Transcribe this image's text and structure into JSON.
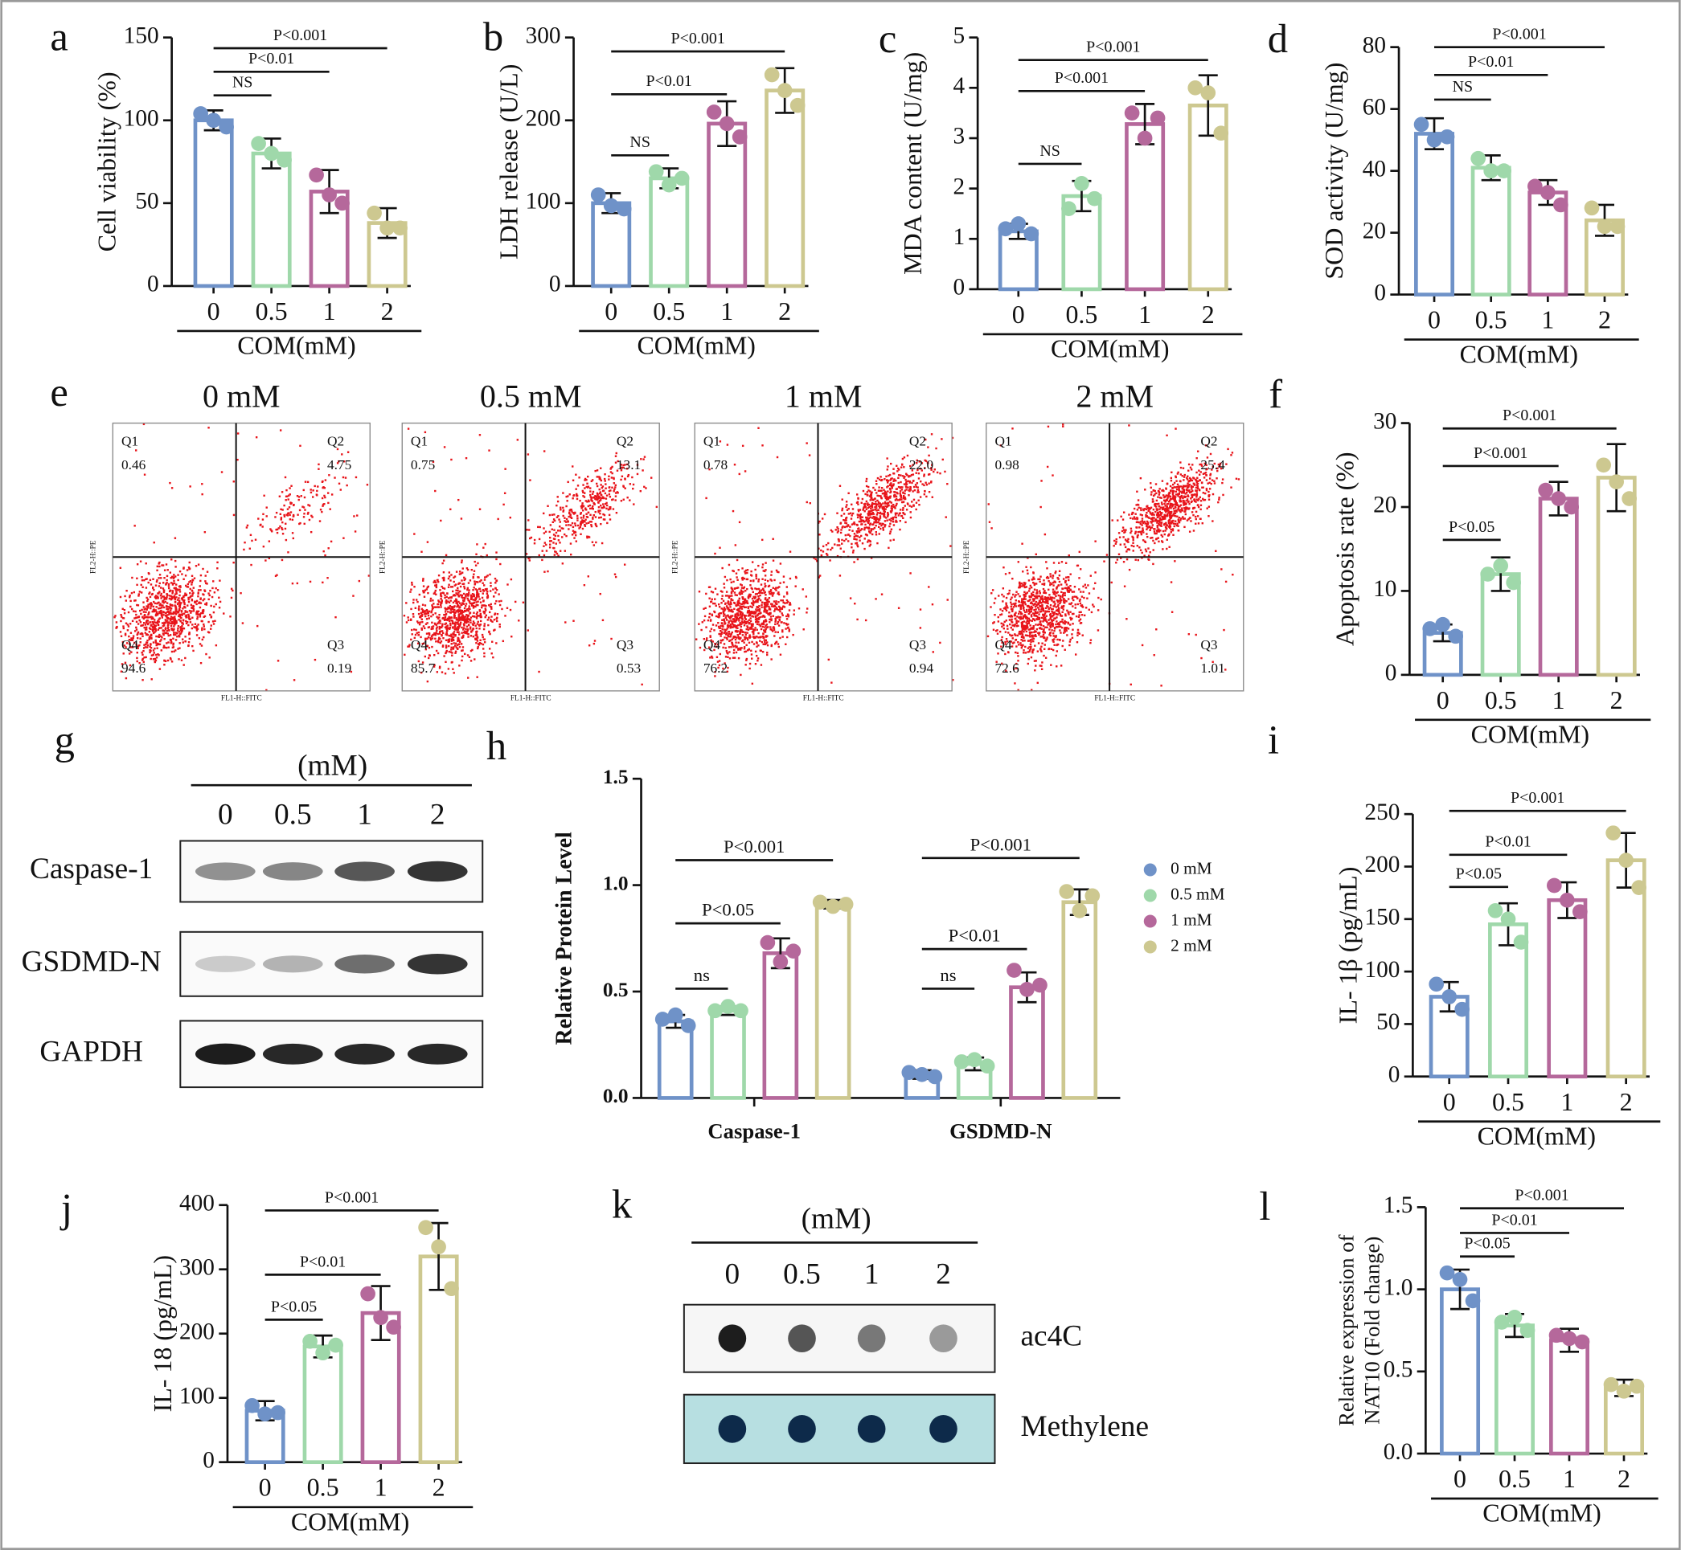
{
  "chart_data": [
    {
      "type": "bar",
      "label": "a",
      "y_label": "Cell viability (%)",
      "x_label": "COM(mM)",
      "categories": [
        "0",
        "0.5",
        "1",
        "2"
      ],
      "values": [
        100,
        80,
        57,
        38
      ],
      "errors": [
        6,
        9,
        13,
        9
      ],
      "points": [
        [
          104,
          100,
          96
        ],
        [
          86,
          80,
          76
        ],
        [
          67,
          55,
          50
        ],
        [
          44,
          35,
          35
        ]
      ],
      "colors": [
        "#6f92c8",
        "#9fd8aa",
        "#b5689b",
        "#cdc890"
      ],
      "ylim": [
        0,
        150
      ],
      "yticks": [
        0,
        50,
        100,
        150
      ],
      "comparisons": [
        "NS",
        "P<0.01",
        "P<0.001"
      ]
    },
    {
      "type": "bar",
      "label": "b",
      "y_label": "LDH release (U/L)",
      "x_label": "COM(mM)",
      "categories": [
        "0",
        "0.5",
        "1",
        "2"
      ],
      "values": [
        100,
        130,
        196,
        236
      ],
      "errors": [
        12,
        12,
        27,
        27
      ],
      "points": [
        [
          110,
          97,
          93
        ],
        [
          138,
          122,
          130
        ],
        [
          210,
          196,
          180
        ],
        [
          255,
          236,
          218
        ]
      ],
      "colors": [
        "#6f92c8",
        "#9fd8aa",
        "#b5689b",
        "#cdc890"
      ],
      "ylim": [
        0,
        300
      ],
      "yticks": [
        0,
        100,
        200,
        300
      ],
      "comparisons": [
        "NS",
        "P<0.01",
        "P<0.001"
      ]
    },
    {
      "type": "bar",
      "label": "c",
      "y_label": "MDA content (U/mg)",
      "x_label": "COM(mM)",
      "categories": [
        "0",
        "0.5",
        "1",
        "2"
      ],
      "values": [
        1.15,
        1.85,
        3.28,
        3.65
      ],
      "errors": [
        0.15,
        0.3,
        0.4,
        0.6
      ],
      "points": [
        [
          1.2,
          1.3,
          1.1
        ],
        [
          1.6,
          2.1,
          1.8
        ],
        [
          3.5,
          3.0,
          3.4
        ],
        [
          4.0,
          3.9,
          3.1
        ]
      ],
      "colors": [
        "#6f92c8",
        "#9fd8aa",
        "#b5689b",
        "#cdc890"
      ],
      "ylim": [
        0,
        5
      ],
      "yticks": [
        0,
        1,
        2,
        3,
        4,
        5
      ],
      "comparisons": [
        "NS",
        "P<0.001",
        "P<0.001"
      ]
    },
    {
      "type": "bar",
      "label": "d",
      "y_label": "SOD activity (U/mg)",
      "x_label": "COM(mM)",
      "categories": [
        "0",
        "0.5",
        "1",
        "2"
      ],
      "values": [
        52,
        41,
        33,
        24
      ],
      "errors": [
        5,
        4,
        4,
        5
      ],
      "points": [
        [
          55,
          50,
          51
        ],
        [
          44,
          40,
          40
        ],
        [
          35,
          33,
          29
        ],
        [
          28,
          22,
          22
        ]
      ],
      "colors": [
        "#6f92c8",
        "#9fd8aa",
        "#b5689b",
        "#cdc890"
      ],
      "ylim": [
        0,
        80
      ],
      "yticks": [
        0,
        20,
        40,
        60,
        80
      ],
      "comparisons": [
        "NS",
        "P<0.01",
        "P<0.001"
      ]
    },
    {
      "type": "bar",
      "label": "f",
      "y_label": "Apoptosis rate (%)",
      "x_label": "COM(mM)",
      "categories": [
        "0",
        "0.5",
        "1",
        "2"
      ],
      "values": [
        5,
        12,
        21,
        23.5
      ],
      "errors": [
        1,
        2,
        2,
        4
      ],
      "points": [
        [
          5.5,
          6,
          4.6
        ],
        [
          12,
          13,
          11
        ],
        [
          22,
          21,
          20
        ],
        [
          25,
          23,
          21
        ]
      ],
      "colors": [
        "#6f92c8",
        "#9fd8aa",
        "#b5689b",
        "#cdc890"
      ],
      "ylim": [
        0,
        30
      ],
      "yticks": [
        0,
        10,
        20,
        30
      ],
      "comparisons": [
        "P<0.05",
        "P<0.001",
        "P<0.001"
      ]
    },
    {
      "type": "grouped_bar",
      "label": "h",
      "y_label": "Relative Protein Level",
      "categories": [
        "Caspase-1",
        "GSDMD-N"
      ],
      "series": [
        {
          "name": "0 mM",
          "color": "#6f92c8",
          "values": [
            0.36,
            0.11
          ],
          "errors": [
            0.03,
            0.02
          ],
          "points": [
            [
              0.37,
              0.39,
              0.34
            ],
            [
              0.12,
              0.11,
              0.1
            ]
          ]
        },
        {
          "name": "0.5 mM",
          "color": "#9fd8aa",
          "values": [
            0.41,
            0.16
          ],
          "errors": [
            0.02,
            0.03
          ],
          "points": [
            [
              0.41,
              0.43,
              0.41
            ],
            [
              0.17,
              0.18,
              0.15
            ]
          ]
        },
        {
          "name": "1 mM",
          "color": "#b5689b",
          "values": [
            0.68,
            0.52
          ],
          "errors": [
            0.07,
            0.07
          ],
          "points": [
            [
              0.73,
              0.64,
              0.69
            ],
            [
              0.6,
              0.51,
              0.53
            ]
          ]
        },
        {
          "name": "2 mM",
          "color": "#cdc890",
          "values": [
            0.91,
            0.92
          ],
          "errors": [
            0.02,
            0.06
          ],
          "points": [
            [
              0.92,
              0.9,
              0.91
            ],
            [
              0.97,
              0.88,
              0.95
            ]
          ]
        }
      ],
      "comparisons": [
        [
          "ns",
          "P<0.05",
          "P<0.001"
        ],
        [
          "ns",
          "P<0.01",
          "P<0.001"
        ]
      ],
      "ylim": [
        0,
        1.5
      ],
      "yticks": [
        {
          "value": 0,
          "label": "0.0"
        },
        0.5,
        {
          "value": 1,
          "label": "1.0"
        },
        1.5
      ]
    },
    {
      "type": "bar",
      "label": "i",
      "y_label": "IL- 1β (pg/mL)",
      "x_label": "COM(mM)",
      "categories": [
        "0",
        "0.5",
        "1",
        "2"
      ],
      "values": [
        76,
        145,
        168,
        206
      ],
      "errors": [
        14,
        20,
        17,
        26
      ],
      "points": [
        [
          88,
          76,
          64
        ],
        [
          158,
          150,
          128
        ],
        [
          182,
          168,
          157
        ],
        [
          232,
          206,
          180
        ]
      ],
      "colors": [
        "#6f92c8",
        "#9fd8aa",
        "#b5689b",
        "#cdc890"
      ],
      "ylim": [
        0,
        250
      ],
      "yticks": [
        0,
        50,
        100,
        150,
        200,
        250
      ],
      "comparisons": [
        "P<0.05",
        "P<0.01",
        "P<0.001"
      ]
    },
    {
      "type": "bar",
      "label": "j",
      "y_label": "IL- 18 (pg/mL)",
      "x_label": "COM(mM)",
      "categories": [
        "0",
        "0.5",
        "1",
        "2"
      ],
      "values": [
        80,
        180,
        232,
        320
      ],
      "errors": [
        15,
        17,
        42,
        52
      ],
      "points": [
        [
          88,
          75,
          77
        ],
        [
          188,
          170,
          182
        ],
        [
          262,
          225,
          210
        ],
        [
          365,
          335,
          270
        ]
      ],
      "colors": [
        "#6f92c8",
        "#9fd8aa",
        "#b5689b",
        "#cdc890"
      ],
      "ylim": [
        0,
        400
      ],
      "yticks": [
        0,
        100,
        200,
        300,
        400
      ],
      "comparisons": [
        "P<0.05",
        "P<0.01",
        "P<0.001"
      ]
    },
    {
      "type": "bar",
      "label": "l",
      "y_label": [
        "Relative expression of",
        "NAT10 (Fold change)"
      ],
      "x_label": "COM(mM)",
      "categories": [
        "0",
        "0.5",
        "1",
        "2"
      ],
      "values": [
        1.0,
        0.78,
        0.69,
        0.4
      ],
      "errors": [
        0.12,
        0.07,
        0.07,
        0.05
      ],
      "points": [
        [
          1.1,
          1.06,
          0.93
        ],
        [
          0.8,
          0.83,
          0.75
        ],
        [
          0.72,
          0.7,
          0.68
        ],
        [
          0.42,
          0.38,
          0.41
        ]
      ],
      "colors": [
        "#6f92c8",
        "#9fd8aa",
        "#b5689b",
        "#cdc890"
      ],
      "ylim": [
        0,
        1.5
      ],
      "yticks": [
        {
          "value": 0,
          "label": "0.0"
        },
        0.5,
        {
          "value": 1,
          "label": "1.0"
        },
        1.5
      ],
      "comparisons": [
        "P<0.05",
        "P<0.01",
        "P<0.001"
      ]
    }
  ],
  "flow_cytometry": {
    "label": "e",
    "x_axis": "FL1-H::FITC",
    "y_axis": "FL2-H::PE",
    "panels": [
      {
        "title": "0 mM",
        "quadrants": [
          {
            "name": "Q1",
            "value": "0.46"
          },
          {
            "name": "Q2",
            "value": "4.75"
          },
          {
            "name": "Q3",
            "value": "0.19"
          },
          {
            "name": "Q4",
            "value": "94.6"
          }
        ]
      },
      {
        "title": "0.5 mM",
        "quadrants": [
          {
            "name": "Q1",
            "value": "0.75"
          },
          {
            "name": "Q2",
            "value": "13.1"
          },
          {
            "name": "Q3",
            "value": "0.53"
          },
          {
            "name": "Q4",
            "value": "85.7"
          }
        ]
      },
      {
        "title": "1 mM",
        "quadrants": [
          {
            "name": "Q1",
            "value": "0.78"
          },
          {
            "name": "Q2",
            "value": "22.0"
          },
          {
            "name": "Q3",
            "value": "0.94"
          },
          {
            "name": "Q4",
            "value": "76.2"
          }
        ]
      },
      {
        "title": "2 mM",
        "quadrants": [
          {
            "name": "Q1",
            "value": "0.98"
          },
          {
            "name": "Q2",
            "value": "25.4"
          },
          {
            "name": "Q3",
            "value": "1.01"
          },
          {
            "name": "Q4",
            "value": "72.6"
          }
        ]
      }
    ]
  },
  "blots": [
    {
      "label": "g",
      "unit": "(mM)",
      "lanes": [
        "0",
        "0.5",
        "1",
        "2"
      ],
      "rows": [
        "Caspase-1",
        "GSDMD-N",
        "GAPDH"
      ]
    },
    {
      "label": "k",
      "unit": "(mM)",
      "lanes": [
        "0",
        "0.5",
        "1",
        "2"
      ],
      "rows": [
        "ac4C",
        "Methylene"
      ]
    }
  ]
}
